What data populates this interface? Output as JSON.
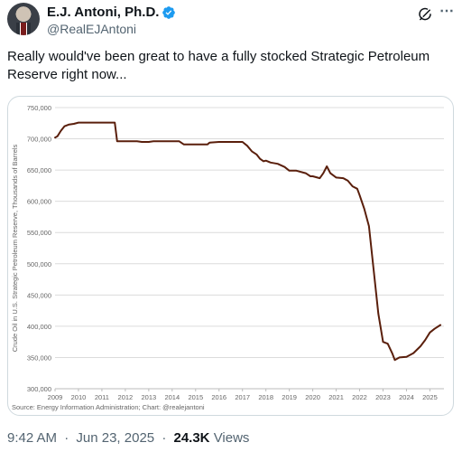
{
  "author": {
    "name": "E.J. Antoni, Ph.D.",
    "handle": "@RealEJAntoni",
    "verified": true
  },
  "tweet": {
    "text": "Really would've been great to have a fully stocked Strategic Petroleum Reserve right now..."
  },
  "meta": {
    "time": "9:42 AM",
    "date": "Jun 23, 2025",
    "views_count": "24.3K",
    "views_label": "Views",
    "separator": "·"
  },
  "icons": {
    "grok": "grok-icon",
    "more": "more-icon",
    "verified": "verified-badge-icon"
  },
  "colors": {
    "verified": "#1d9bf0",
    "line": "#5a1f0c",
    "grid": "#dcdcdc",
    "axis_text": "#666666"
  },
  "chart_data": {
    "type": "line",
    "ylabel": "Crude Oil in U.S. Strategic Petroleum Reserve, Thousands of Barrels",
    "source": "Source: Energy Information Administration; Chart: @realejantoni",
    "ylim": [
      300000,
      750000
    ],
    "xlim": [
      2009,
      2025.6
    ],
    "y_ticks": [
      300000,
      350000,
      400000,
      450000,
      500000,
      550000,
      600000,
      650000,
      700000,
      750000
    ],
    "y_tick_labels": [
      "300,000",
      "350,000",
      "400,000",
      "450,000",
      "500,000",
      "550,000",
      "600,000",
      "650,000",
      "700,000",
      "750,000"
    ],
    "x_ticks": [
      2009,
      2010,
      2011,
      2012,
      2013,
      2014,
      2015,
      2016,
      2017,
      2018,
      2019,
      2020,
      2021,
      2022,
      2023,
      2024,
      2025
    ],
    "x_tick_labels": [
      "2009",
      "2010",
      "2011",
      "2012",
      "2013",
      "2014",
      "2015",
      "2016",
      "2017",
      "2018",
      "2019",
      "2020",
      "2021",
      "2022",
      "2023",
      "2024",
      "2025"
    ],
    "grid": "horizontal",
    "series": [
      {
        "x": [
          2009.0,
          2009.1,
          2009.25,
          2009.4,
          2009.6,
          2009.8,
          2010.0,
          2010.5,
          2011.0,
          2011.4,
          2011.55,
          2011.65,
          2012.0,
          2012.5,
          2012.7,
          2013.0,
          2013.2,
          2013.6,
          2014.0,
          2014.3,
          2014.5,
          2015.0,
          2015.5,
          2015.6,
          2016.0,
          2016.5,
          2017.0,
          2017.2,
          2017.4,
          2017.6,
          2017.75,
          2017.9,
          2018.0,
          2018.2,
          2018.5,
          2018.8,
          2019.0,
          2019.3,
          2019.7,
          2019.9,
          2020.0,
          2020.3,
          2020.45,
          2020.6,
          2020.75,
          2021.0,
          2021.3,
          2021.5,
          2021.7,
          2021.9,
          2022.0,
          2022.2,
          2022.4,
          2022.6,
          2022.8,
          2023.0,
          2023.2,
          2023.4,
          2023.5,
          2023.7,
          2024.0,
          2024.3,
          2024.6,
          2024.8,
          2025.0,
          2025.2,
          2025.45
        ],
        "y": [
          702000,
          704000,
          713000,
          720000,
          723000,
          724000,
          726000,
          726000,
          726000,
          726000,
          726000,
          696000,
          696000,
          696000,
          695000,
          695000,
          696000,
          696000,
          696000,
          696000,
          691000,
          691000,
          691000,
          694000,
          695000,
          695000,
          695000,
          689000,
          680000,
          675000,
          668000,
          664000,
          665000,
          662000,
          660000,
          655000,
          649000,
          649000,
          645000,
          640000,
          640000,
          637000,
          645000,
          656000,
          645000,
          638000,
          637000,
          633000,
          624000,
          620000,
          610000,
          588000,
          560000,
          490000,
          420000,
          375000,
          372000,
          356000,
          346000,
          350000,
          351000,
          357000,
          368000,
          378000,
          390000,
          396000,
          402000
        ]
      }
    ]
  }
}
